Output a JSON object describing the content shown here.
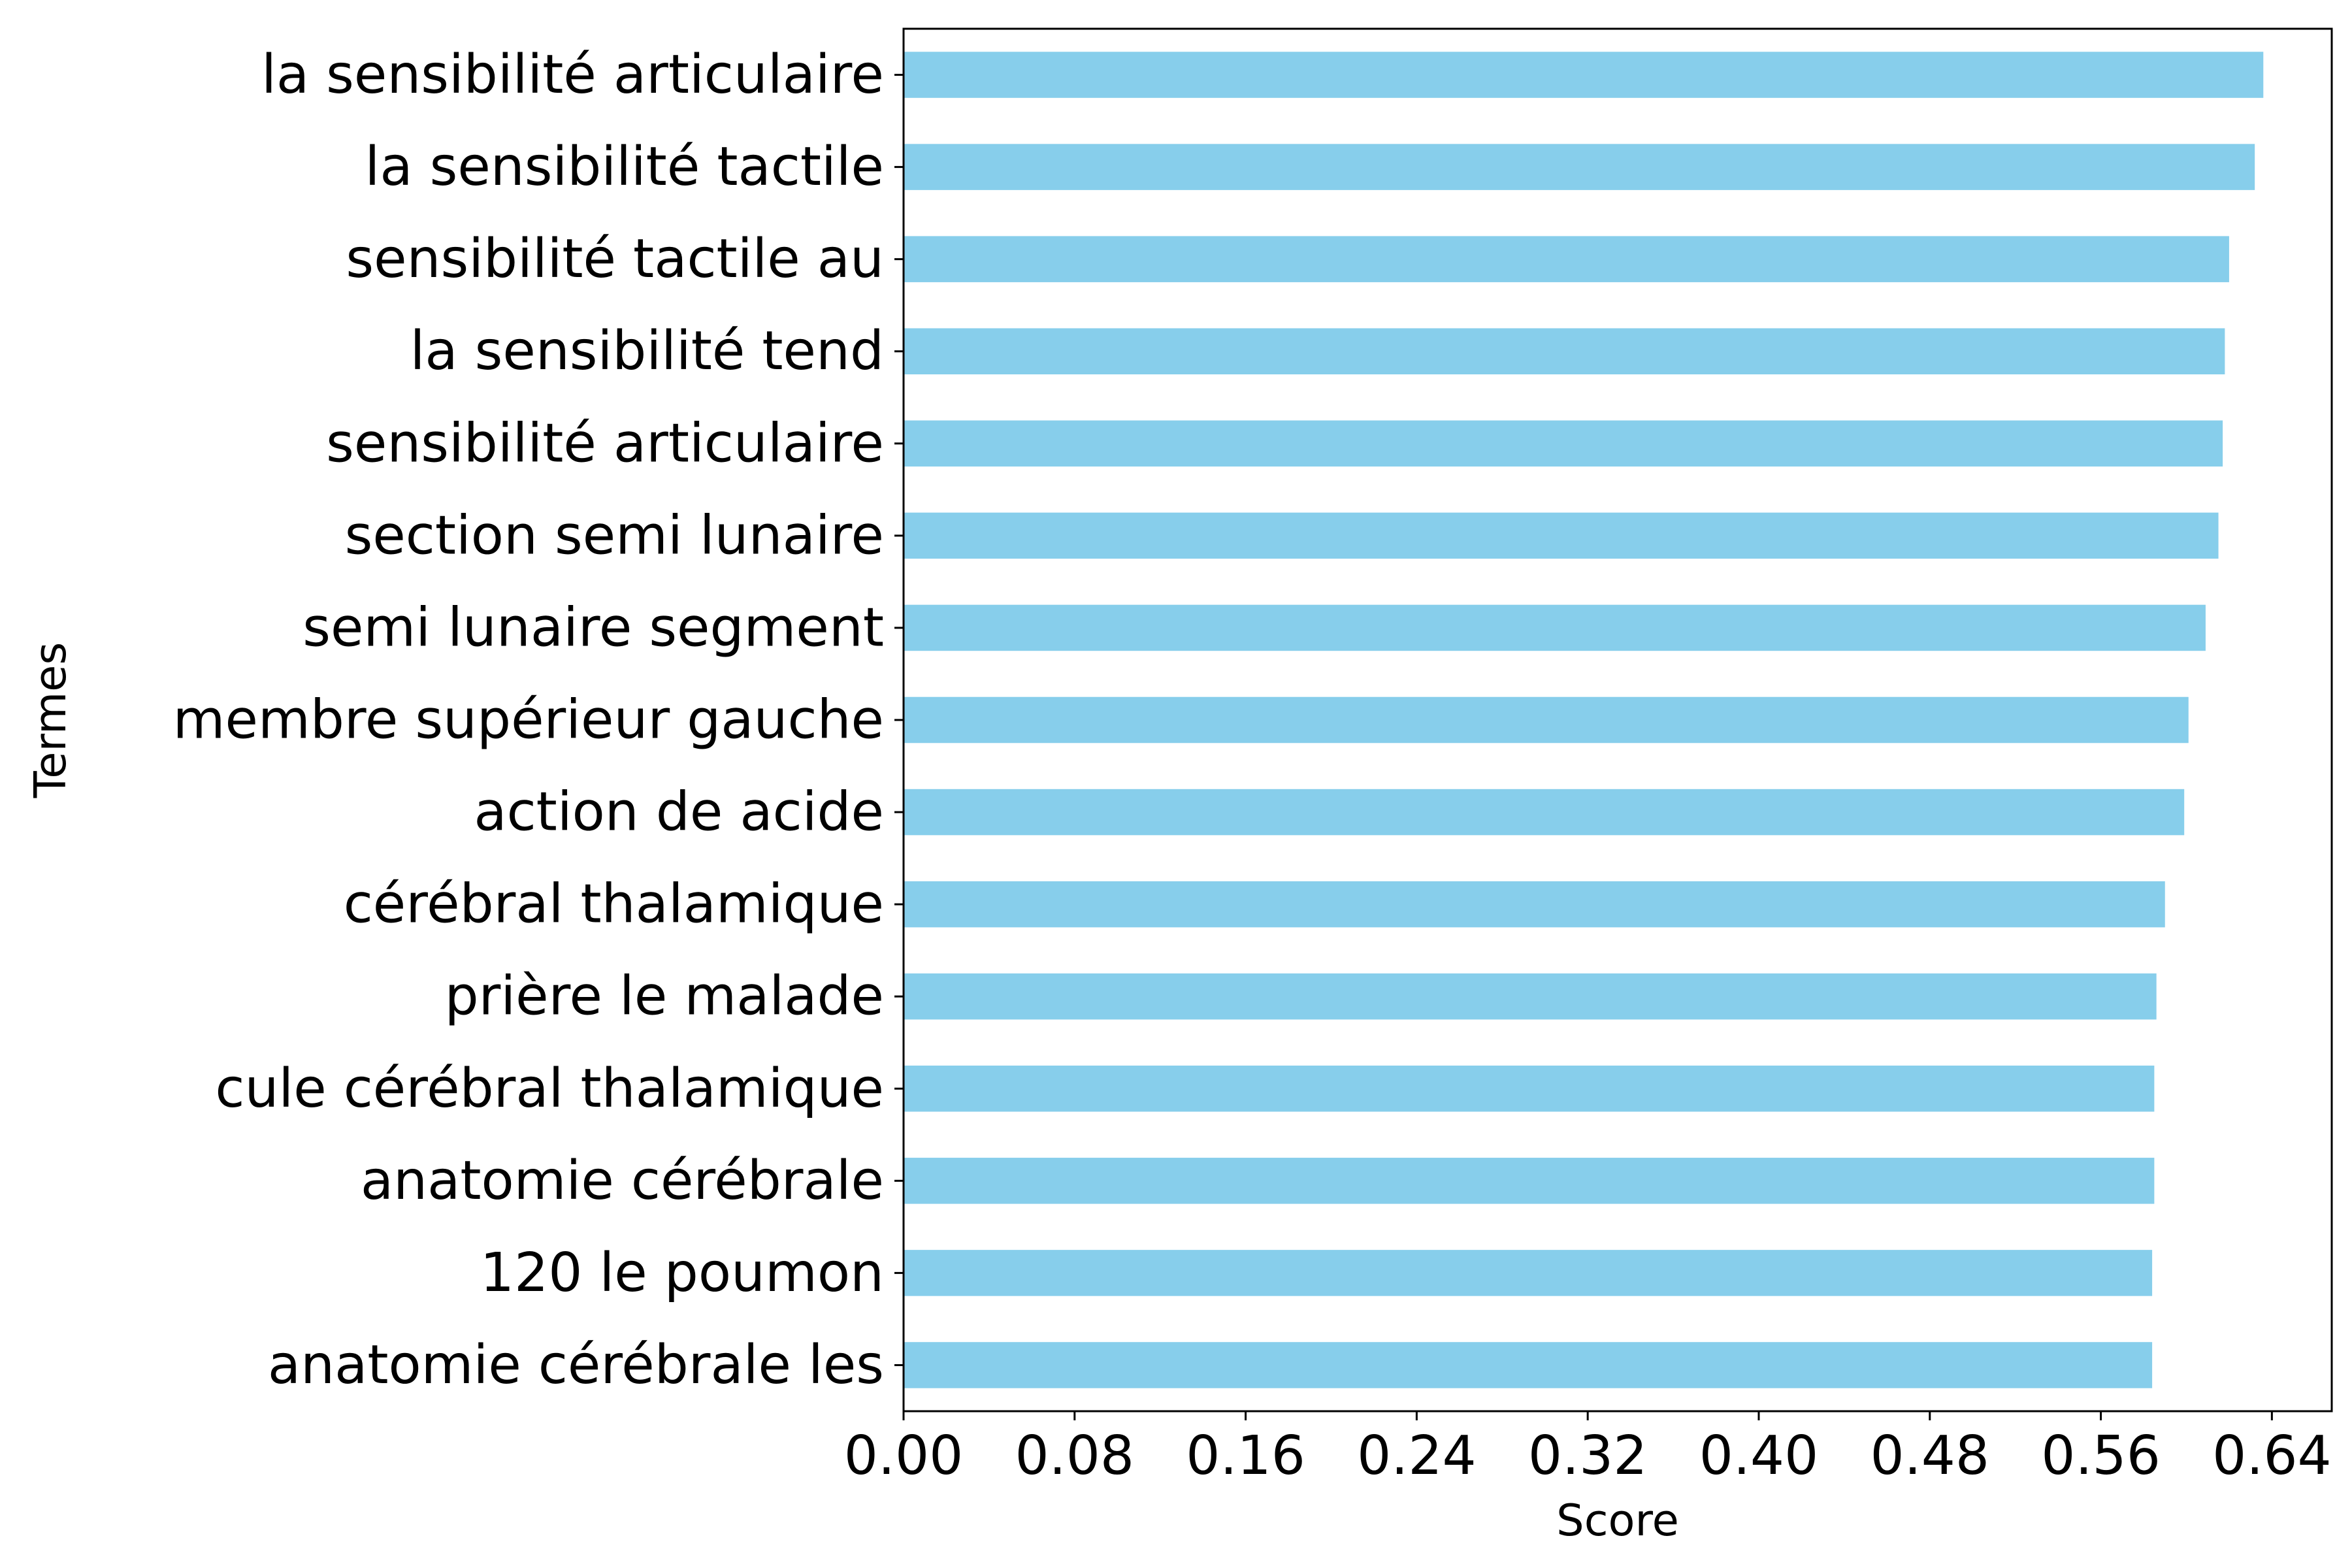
{
  "chart_data": {
    "type": "bar",
    "orientation": "horizontal",
    "categories": [
      "la sensibilité articulaire",
      "la sensibilité tactile",
      "sensibilité tactile au",
      "la sensibilité tend",
      "sensibilité articulaire",
      "section semi lunaire",
      "semi lunaire segment",
      "membre supérieur gauche",
      "action de acide",
      "cérébral thalamique",
      "prière le malade",
      "cule cérébral thalamique",
      "anatomie cérébrale",
      "120 le poumon",
      "anatomie cérébrale les"
    ],
    "values": [
      0.636,
      0.632,
      0.62,
      0.618,
      0.617,
      0.615,
      0.609,
      0.601,
      0.599,
      0.59,
      0.586,
      0.585,
      0.585,
      0.584,
      0.584
    ],
    "xlabel": "Score",
    "ylabel": "Termes",
    "xlim": [
      0,
      0.668
    ],
    "xticks": [
      "0.00",
      "0.08",
      "0.16",
      "0.24",
      "0.32",
      "0.40",
      "0.48",
      "0.56",
      "0.64"
    ],
    "bar_color": "#87ceeb",
    "grid": false,
    "legend": "none"
  }
}
